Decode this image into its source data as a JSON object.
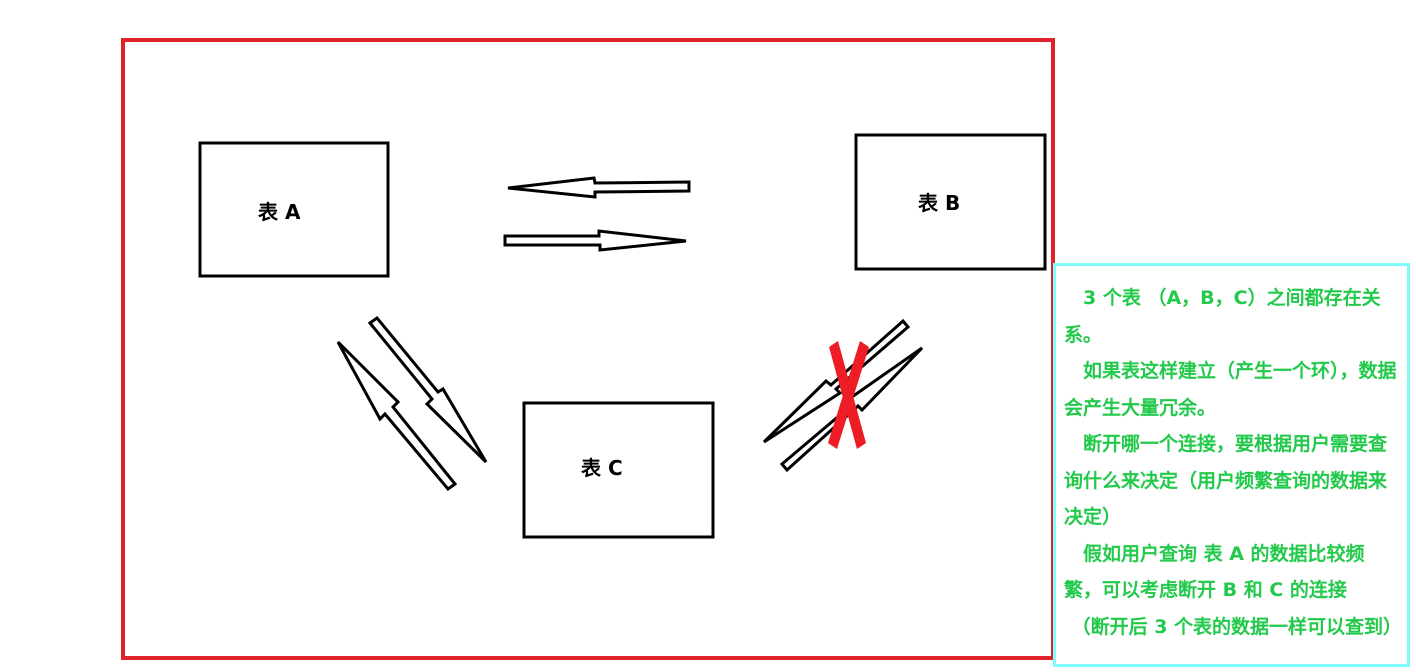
{
  "colors": {
    "frame": "#e0232b",
    "note_border": "#7ffcfc",
    "note_text": "#22c94a",
    "cross": "#ee1c24"
  },
  "tables": {
    "a": "表 A",
    "b": "表 B",
    "c": "表 C"
  },
  "note": {
    "paragraphs": [
      "3 个表 （A，B，C）之间都存在关系。",
      "如果表这样建立（产生一个环），数据会产生大量冗余。",
      "断开哪一个连接，要根据用户需要查询什么来决定（用户频繁查询的数据来决定）",
      "假如用户查询 表 A 的数据比较频繁，可以考虑断开 B 和 C 的连接",
      "（断开后 3 个表的数据一样可以查到）"
    ]
  },
  "icons": {
    "arrow": "hollow-arrow-icon",
    "cross": "red-cross-icon"
  }
}
